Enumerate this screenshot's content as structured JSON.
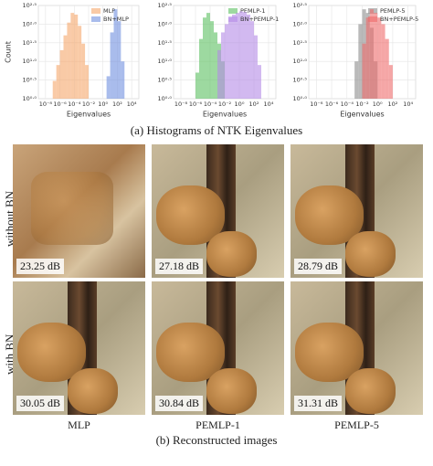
{
  "chart_data": [
    {
      "type": "histogram",
      "xlabel": "Eigenvalues",
      "ylabel": "Count",
      "xlog": true,
      "ylog": true,
      "grid": true,
      "legend": "upper right",
      "xlim": [
        1e-09,
        100000.0
      ],
      "xticks": [
        {
          "value": 1e-08,
          "label": "10⁻⁸"
        },
        {
          "value": 1e-06,
          "label": "10⁻⁶"
        },
        {
          "value": 0.0001,
          "label": "10⁻⁴"
        },
        {
          "value": 0.01,
          "label": "10⁻²"
        },
        {
          "value": 1,
          "label": "10⁰"
        },
        {
          "value": 100,
          "label": "10²"
        },
        {
          "value": 10000,
          "label": "10⁴"
        }
      ],
      "ylim": [
        1,
        316.2
      ],
      "yticks": [
        {
          "value": 1,
          "label": "10⁰·⁰"
        },
        {
          "value": 3.162,
          "label": "10⁰·⁵"
        },
        {
          "value": 10,
          "label": "10¹·⁰"
        },
        {
          "value": 31.62,
          "label": "10¹·⁵"
        },
        {
          "value": 100,
          "label": "10²·⁰"
        },
        {
          "value": 316.2,
          "label": "10²·⁵"
        }
      ],
      "series": [
        {
          "name": "MLP",
          "color": "#f5a76a",
          "bins": [
            1e-07,
            3.162e-07,
            1e-06,
            3.162e-06,
            1e-05,
            3.162e-05,
            0.0001,
            0.0003162,
            0.001,
            0.003162,
            0.01
          ],
          "values": [
            3,
            8,
            20,
            50,
            110,
            200,
            180,
            90,
            30,
            8
          ]
        },
        {
          "name": "BN+MLP",
          "color": "#6f8fe0",
          "bins": [
            3.162,
            10,
            31.62,
            100,
            316.2,
            1000
          ],
          "values": [
            4,
            60,
            250,
            120,
            10
          ]
        }
      ]
    },
    {
      "type": "histogram",
      "xlabel": "Eigenvalues",
      "xlog": true,
      "ylog": true,
      "grid": true,
      "legend": "upper right",
      "xlim": [
        1e-09,
        100000.0
      ],
      "xticks": [
        {
          "value": 1e-08,
          "label": "10⁻⁸"
        },
        {
          "value": 1e-06,
          "label": "10⁻⁶"
        },
        {
          "value": 0.0001,
          "label": "10⁻⁴"
        },
        {
          "value": 0.01,
          "label": "10⁻²"
        },
        {
          "value": 1,
          "label": "10⁰"
        },
        {
          "value": 100,
          "label": "10²"
        },
        {
          "value": 10000,
          "label": "10⁴"
        }
      ],
      "ylim": [
        1,
        316.2
      ],
      "yticks": [
        {
          "value": 1,
          "label": "10⁰·⁰"
        },
        {
          "value": 3.162,
          "label": "10⁰·⁵"
        },
        {
          "value": 10,
          "label": "10¹·⁰"
        },
        {
          "value": 31.62,
          "label": "10¹·⁵"
        },
        {
          "value": 100,
          "label": "10²·⁰"
        },
        {
          "value": 316.2,
          "label": "10²·⁵"
        }
      ],
      "series": [
        {
          "name": "PEMLP-1",
          "color": "#5cc060",
          "bins": [
            1e-06,
            3.162e-06,
            1e-05,
            3.162e-05,
            0.0001,
            0.0003162,
            0.001,
            0.003162,
            0.01
          ],
          "values": [
            5,
            40,
            150,
            200,
            120,
            60,
            30,
            10
          ]
        },
        {
          "name": "BN+PEMLP-1",
          "color": "#b48be6",
          "bins": [
            0.001,
            0.003162,
            0.01,
            0.03162,
            0.1,
            0.3162,
            1,
            3.162,
            10,
            31.62,
            100,
            316.2,
            1000
          ],
          "values": [
            20,
            60,
            100,
            150,
            180,
            200,
            220,
            210,
            180,
            120,
            50,
            8
          ]
        }
      ]
    },
    {
      "type": "histogram",
      "xlabel": "Eigenvalues",
      "xlog": true,
      "ylog": true,
      "grid": true,
      "legend": "upper right",
      "xlim": [
        1e-09,
        100000.0
      ],
      "xticks": [
        {
          "value": 1e-08,
          "label": "10⁻⁸"
        },
        {
          "value": 1e-06,
          "label": "10⁻⁶"
        },
        {
          "value": 0.0001,
          "label": "10⁻⁴"
        },
        {
          "value": 0.01,
          "label": "10⁻²"
        },
        {
          "value": 1,
          "label": "10⁰"
        },
        {
          "value": 100,
          "label": "10²"
        },
        {
          "value": 10000,
          "label": "10⁴"
        }
      ],
      "ylim": [
        1,
        316.2
      ],
      "yticks": [
        {
          "value": 1,
          "label": "10⁰·⁰"
        },
        {
          "value": 3.162,
          "label": "10⁰·⁵"
        },
        {
          "value": 10,
          "label": "10¹·⁰"
        },
        {
          "value": 31.62,
          "label": "10¹·⁵"
        },
        {
          "value": 100,
          "label": "10²·⁰"
        },
        {
          "value": 316.2,
          "label": "10²·⁵"
        }
      ],
      "series": [
        {
          "name": "PEMLP-5",
          "color": "#8c8c8c",
          "bins": [
            0.001,
            0.003162,
            0.01,
            0.03162,
            0.1,
            0.3162,
            1
          ],
          "values": [
            10,
            100,
            250,
            200,
            80,
            10
          ]
        },
        {
          "name": "BN+PEMLP-5",
          "color": "#ef6a6a",
          "bins": [
            0.01,
            0.03162,
            0.1,
            0.3162,
            1,
            3.162,
            10,
            31.62,
            100
          ],
          "values": [
            30,
            150,
            250,
            200,
            150,
            100,
            40,
            8
          ]
        }
      ]
    }
  ],
  "captions": {
    "histograms": "(a) Histograms of NTK Eigenvalues",
    "reconstructions": "(b) Reconstructed images"
  },
  "images": {
    "rows": [
      "without BN",
      "with BN"
    ],
    "columns": [
      "MLP",
      "PEMLP-1",
      "PEMLP-5"
    ],
    "psnr": [
      [
        "23.25 dB",
        "27.18 dB",
        "28.79 dB"
      ],
      [
        "30.05 dB",
        "30.84 dB",
        "31.31 dB"
      ]
    ]
  }
}
